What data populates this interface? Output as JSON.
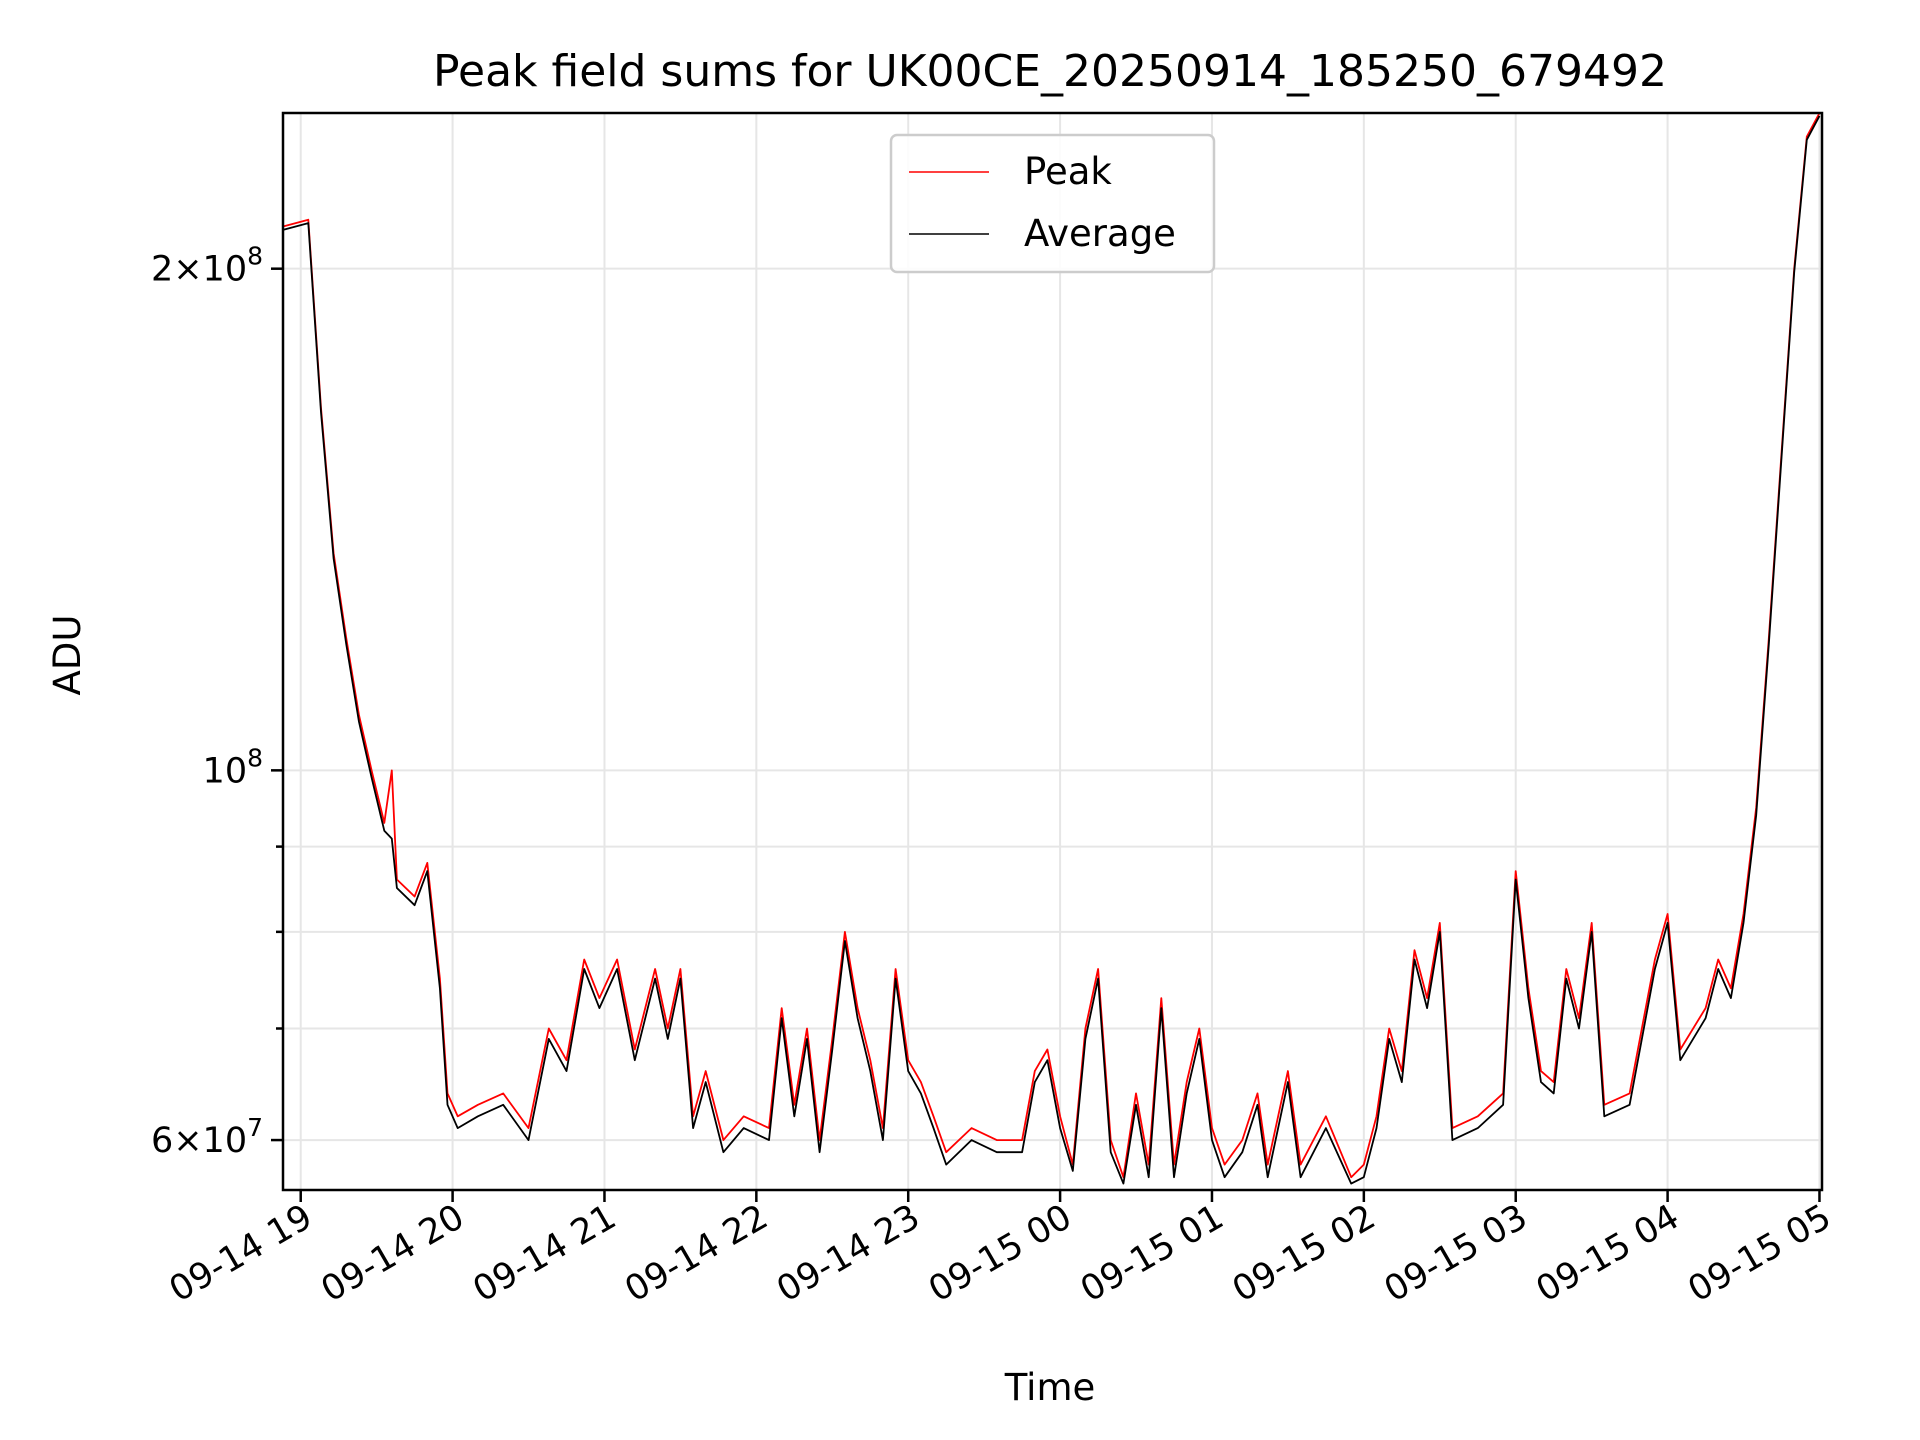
{
  "chart_data": {
    "type": "line",
    "title": "Peak field sums for UK00CE_20250914_185250_679492",
    "xlabel": "Time",
    "ylabel": "ADU",
    "yscale": "log",
    "x_range": [
      "2025-09-14 18:53",
      "2025-09-15 05:01"
    ],
    "ylim": [
      56000000,
      248000000
    ],
    "grid": true,
    "legend_position": "upper center",
    "x_ticks": [
      "09-14 19",
      "09-14 20",
      "09-14 21",
      "09-14 22",
      "09-14 23",
      "09-15 00",
      "09-15 01",
      "09-15 02",
      "09-15 03",
      "09-15 04",
      "09-15 05"
    ],
    "y_major_ticks": [
      {
        "value": 60000000,
        "base": "6×10",
        "exp": "7"
      },
      {
        "value": 100000000,
        "base": "10",
        "exp": "8"
      },
      {
        "value": 200000000,
        "base": "2×10",
        "exp": "8"
      }
    ],
    "y_minor_ticks": [
      70000000,
      80000000,
      90000000
    ],
    "series_style": [
      {
        "name": "Peak",
        "color": "#ff0000"
      },
      {
        "name": "Average",
        "color": "#000000"
      }
    ],
    "series": [
      {
        "name": "Peak",
        "points": [
          [
            "2025-09-14 18:53",
            212000000
          ],
          [
            "2025-09-14 18:58",
            213000000
          ],
          [
            "2025-09-14 19:03",
            214000000
          ],
          [
            "2025-09-14 19:08",
            165000000
          ],
          [
            "2025-09-14 19:13",
            135000000
          ],
          [
            "2025-09-14 19:18",
            120000000
          ],
          [
            "2025-09-14 19:23",
            108000000
          ],
          [
            "2025-09-14 19:28",
            100000000
          ],
          [
            "2025-09-14 19:33",
            93000000
          ],
          [
            "2025-09-14 19:36",
            100000000
          ],
          [
            "2025-09-14 19:38",
            86000000
          ],
          [
            "2025-09-14 19:45",
            84000000
          ],
          [
            "2025-09-14 19:50",
            88000000
          ],
          [
            "2025-09-14 19:55",
            75000000
          ],
          [
            "2025-09-14 19:58",
            64000000
          ],
          [
            "2025-09-14 20:02",
            62000000
          ],
          [
            "2025-09-14 20:10",
            63000000
          ],
          [
            "2025-09-14 20:20",
            64000000
          ],
          [
            "2025-09-14 20:30",
            61000000
          ],
          [
            "2025-09-14 20:38",
            70000000
          ],
          [
            "2025-09-14 20:45",
            67000000
          ],
          [
            "2025-09-14 20:52",
            77000000
          ],
          [
            "2025-09-14 20:58",
            73000000
          ],
          [
            "2025-09-14 21:05",
            77000000
          ],
          [
            "2025-09-14 21:12",
            68000000
          ],
          [
            "2025-09-14 21:20",
            76000000
          ],
          [
            "2025-09-14 21:25",
            70000000
          ],
          [
            "2025-09-14 21:30",
            76000000
          ],
          [
            "2025-09-14 21:35",
            62000000
          ],
          [
            "2025-09-14 21:40",
            66000000
          ],
          [
            "2025-09-14 21:47",
            60000000
          ],
          [
            "2025-09-14 21:55",
            62000000
          ],
          [
            "2025-09-14 22:05",
            61000000
          ],
          [
            "2025-09-14 22:10",
            72000000
          ],
          [
            "2025-09-14 22:15",
            63000000
          ],
          [
            "2025-09-14 22:20",
            70000000
          ],
          [
            "2025-09-14 22:25",
            60000000
          ],
          [
            "2025-09-14 22:30",
            69000000
          ],
          [
            "2025-09-14 22:35",
            80000000
          ],
          [
            "2025-09-14 22:40",
            72000000
          ],
          [
            "2025-09-14 22:45",
            67000000
          ],
          [
            "2025-09-14 22:50",
            61000000
          ],
          [
            "2025-09-14 22:55",
            76000000
          ],
          [
            "2025-09-14 23:00",
            67000000
          ],
          [
            "2025-09-14 23:05",
            65000000
          ],
          [
            "2025-09-14 23:10",
            62000000
          ],
          [
            "2025-09-14 23:15",
            59000000
          ],
          [
            "2025-09-14 23:25",
            61000000
          ],
          [
            "2025-09-14 23:35",
            60000000
          ],
          [
            "2025-09-14 23:45",
            60000000
          ],
          [
            "2025-09-14 23:50",
            66000000
          ],
          [
            "2025-09-14 23:55",
            68000000
          ],
          [
            "2025-09-15 00:00",
            62000000
          ],
          [
            "2025-09-15 00:05",
            58000000
          ],
          [
            "2025-09-15 00:10",
            70000000
          ],
          [
            "2025-09-15 00:15",
            76000000
          ],
          [
            "2025-09-15 00:20",
            60000000
          ],
          [
            "2025-09-15 00:25",
            57000000
          ],
          [
            "2025-09-15 00:30",
            64000000
          ],
          [
            "2025-09-15 00:35",
            58000000
          ],
          [
            "2025-09-15 00:40",
            73000000
          ],
          [
            "2025-09-15 00:45",
            58000000
          ],
          [
            "2025-09-15 00:50",
            65000000
          ],
          [
            "2025-09-15 00:55",
            70000000
          ],
          [
            "2025-09-15 01:00",
            61000000
          ],
          [
            "2025-09-15 01:05",
            58000000
          ],
          [
            "2025-09-15 01:12",
            60000000
          ],
          [
            "2025-09-15 01:18",
            64000000
          ],
          [
            "2025-09-15 01:22",
            58000000
          ],
          [
            "2025-09-15 01:30",
            66000000
          ],
          [
            "2025-09-15 01:35",
            58000000
          ],
          [
            "2025-09-15 01:45",
            62000000
          ],
          [
            "2025-09-15 01:55",
            57000000
          ],
          [
            "2025-09-15 02:00",
            58000000
          ],
          [
            "2025-09-15 02:05",
            62000000
          ],
          [
            "2025-09-15 02:10",
            70000000
          ],
          [
            "2025-09-15 02:15",
            66000000
          ],
          [
            "2025-09-15 02:20",
            78000000
          ],
          [
            "2025-09-15 02:25",
            73000000
          ],
          [
            "2025-09-15 02:30",
            81000000
          ],
          [
            "2025-09-15 02:35",
            61000000
          ],
          [
            "2025-09-15 02:45",
            62000000
          ],
          [
            "2025-09-15 02:55",
            64000000
          ],
          [
            "2025-09-15 03:00",
            87000000
          ],
          [
            "2025-09-15 03:05",
            74000000
          ],
          [
            "2025-09-15 03:10",
            66000000
          ],
          [
            "2025-09-15 03:15",
            65000000
          ],
          [
            "2025-09-15 03:20",
            76000000
          ],
          [
            "2025-09-15 03:25",
            71000000
          ],
          [
            "2025-09-15 03:30",
            81000000
          ],
          [
            "2025-09-15 03:35",
            63000000
          ],
          [
            "2025-09-15 03:45",
            64000000
          ],
          [
            "2025-09-15 03:55",
            77000000
          ],
          [
            "2025-09-15 04:00",
            82000000
          ],
          [
            "2025-09-15 04:05",
            68000000
          ],
          [
            "2025-09-15 04:15",
            72000000
          ],
          [
            "2025-09-15 04:20",
            77000000
          ],
          [
            "2025-09-15 04:25",
            74000000
          ],
          [
            "2025-09-15 04:30",
            82000000
          ],
          [
            "2025-09-15 04:35",
            95000000
          ],
          [
            "2025-09-15 04:40",
            120000000
          ],
          [
            "2025-09-15 04:45",
            155000000
          ],
          [
            "2025-09-15 04:50",
            200000000
          ],
          [
            "2025-09-15 04:55",
            240000000
          ],
          [
            "2025-09-15 05:00",
            248000000
          ]
        ]
      },
      {
        "name": "Average",
        "points": [
          [
            "2025-09-14 18:53",
            211000000
          ],
          [
            "2025-09-14 18:58",
            212000000
          ],
          [
            "2025-09-14 19:03",
            213000000
          ],
          [
            "2025-09-14 19:08",
            164000000
          ],
          [
            "2025-09-14 19:13",
            134000000
          ],
          [
            "2025-09-14 19:18",
            119000000
          ],
          [
            "2025-09-14 19:23",
            107000000
          ],
          [
            "2025-09-14 19:28",
            99000000
          ],
          [
            "2025-09-14 19:33",
            92000000
          ],
          [
            "2025-09-14 19:36",
            91000000
          ],
          [
            "2025-09-14 19:38",
            85000000
          ],
          [
            "2025-09-14 19:45",
            83000000
          ],
          [
            "2025-09-14 19:50",
            87000000
          ],
          [
            "2025-09-14 19:55",
            74000000
          ],
          [
            "2025-09-14 19:58",
            63000000
          ],
          [
            "2025-09-14 20:02",
            61000000
          ],
          [
            "2025-09-14 20:10",
            62000000
          ],
          [
            "2025-09-14 20:20",
            63000000
          ],
          [
            "2025-09-14 20:30",
            60000000
          ],
          [
            "2025-09-14 20:38",
            69000000
          ],
          [
            "2025-09-14 20:45",
            66000000
          ],
          [
            "2025-09-14 20:52",
            76000000
          ],
          [
            "2025-09-14 20:58",
            72000000
          ],
          [
            "2025-09-14 21:05",
            76000000
          ],
          [
            "2025-09-14 21:12",
            67000000
          ],
          [
            "2025-09-14 21:20",
            75000000
          ],
          [
            "2025-09-14 21:25",
            69000000
          ],
          [
            "2025-09-14 21:30",
            75000000
          ],
          [
            "2025-09-14 21:35",
            61000000
          ],
          [
            "2025-09-14 21:40",
            65000000
          ],
          [
            "2025-09-14 21:47",
            59000000
          ],
          [
            "2025-09-14 21:55",
            61000000
          ],
          [
            "2025-09-14 22:05",
            60000000
          ],
          [
            "2025-09-14 22:10",
            71000000
          ],
          [
            "2025-09-14 22:15",
            62000000
          ],
          [
            "2025-09-14 22:20",
            69000000
          ],
          [
            "2025-09-14 22:25",
            59000000
          ],
          [
            "2025-09-14 22:30",
            68000000
          ],
          [
            "2025-09-14 22:35",
            79000000
          ],
          [
            "2025-09-14 22:40",
            71000000
          ],
          [
            "2025-09-14 22:45",
            66000000
          ],
          [
            "2025-09-14 22:50",
            60000000
          ],
          [
            "2025-09-14 22:55",
            75000000
          ],
          [
            "2025-09-14 23:00",
            66000000
          ],
          [
            "2025-09-14 23:05",
            64000000
          ],
          [
            "2025-09-14 23:10",
            61000000
          ],
          [
            "2025-09-14 23:15",
            58000000
          ],
          [
            "2025-09-14 23:25",
            60000000
          ],
          [
            "2025-09-14 23:35",
            59000000
          ],
          [
            "2025-09-14 23:45",
            59000000
          ],
          [
            "2025-09-14 23:50",
            65000000
          ],
          [
            "2025-09-14 23:55",
            67000000
          ],
          [
            "2025-09-15 00:00",
            61000000
          ],
          [
            "2025-09-15 00:05",
            57500000
          ],
          [
            "2025-09-15 00:10",
            69000000
          ],
          [
            "2025-09-15 00:15",
            75000000
          ],
          [
            "2025-09-15 00:20",
            59000000
          ],
          [
            "2025-09-15 00:25",
            56500000
          ],
          [
            "2025-09-15 00:30",
            63000000
          ],
          [
            "2025-09-15 00:35",
            57000000
          ],
          [
            "2025-09-15 00:40",
            72000000
          ],
          [
            "2025-09-15 00:45",
            57000000
          ],
          [
            "2025-09-15 00:50",
            64000000
          ],
          [
            "2025-09-15 00:55",
            69000000
          ],
          [
            "2025-09-15 01:00",
            60000000
          ],
          [
            "2025-09-15 01:05",
            57000000
          ],
          [
            "2025-09-15 01:12",
            59000000
          ],
          [
            "2025-09-15 01:18",
            63000000
          ],
          [
            "2025-09-15 01:22",
            57000000
          ],
          [
            "2025-09-15 01:30",
            65000000
          ],
          [
            "2025-09-15 01:35",
            57000000
          ],
          [
            "2025-09-15 01:45",
            61000000
          ],
          [
            "2025-09-15 01:55",
            56500000
          ],
          [
            "2025-09-15 02:00",
            57000000
          ],
          [
            "2025-09-15 02:05",
            61000000
          ],
          [
            "2025-09-15 02:10",
            69000000
          ],
          [
            "2025-09-15 02:15",
            65000000
          ],
          [
            "2025-09-15 02:20",
            77000000
          ],
          [
            "2025-09-15 02:25",
            72000000
          ],
          [
            "2025-09-15 02:30",
            80000000
          ],
          [
            "2025-09-15 02:35",
            60000000
          ],
          [
            "2025-09-15 02:45",
            61000000
          ],
          [
            "2025-09-15 02:55",
            63000000
          ],
          [
            "2025-09-15 03:00",
            86000000
          ],
          [
            "2025-09-15 03:05",
            73000000
          ],
          [
            "2025-09-15 03:10",
            65000000
          ],
          [
            "2025-09-15 03:15",
            64000000
          ],
          [
            "2025-09-15 03:20",
            75000000
          ],
          [
            "2025-09-15 03:25",
            70000000
          ],
          [
            "2025-09-15 03:30",
            80000000
          ],
          [
            "2025-09-15 03:35",
            62000000
          ],
          [
            "2025-09-15 03:45",
            63000000
          ],
          [
            "2025-09-15 03:55",
            76000000
          ],
          [
            "2025-09-15 04:00",
            81000000
          ],
          [
            "2025-09-15 04:05",
            67000000
          ],
          [
            "2025-09-15 04:15",
            71000000
          ],
          [
            "2025-09-15 04:20",
            76000000
          ],
          [
            "2025-09-15 04:25",
            73000000
          ],
          [
            "2025-09-15 04:30",
            81000000
          ],
          [
            "2025-09-15 04:35",
            94000000
          ],
          [
            "2025-09-15 04:40",
            119000000
          ],
          [
            "2025-09-15 04:45",
            154000000
          ],
          [
            "2025-09-15 04:50",
            199000000
          ],
          [
            "2025-09-15 04:55",
            239000000
          ],
          [
            "2025-09-15 05:00",
            247000000
          ]
        ]
      }
    ]
  }
}
